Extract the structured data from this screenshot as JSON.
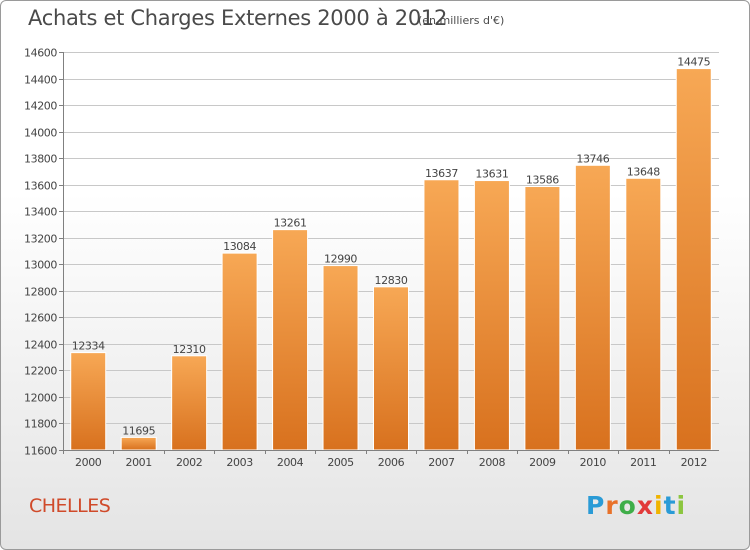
{
  "header": {
    "title": "Achats et Charges Externes 2000 à 2012",
    "subtitle": "(en milliers d'€)"
  },
  "footer": {
    "commune": "CHELLES",
    "logo_letters": [
      "P",
      "r",
      "o",
      "x",
      "i",
      "t",
      "i"
    ],
    "logo_colors": [
      "#2a9bd6",
      "#e8722a",
      "#3fae49",
      "#e23a3a",
      "#f0b400",
      "#2a9bd6",
      "#8cc63f"
    ]
  },
  "chart_data": {
    "type": "bar",
    "title": "Achats et Charges Externes 2000 à 2012",
    "categories": [
      "2000",
      "2001",
      "2002",
      "2003",
      "2004",
      "2005",
      "2006",
      "2007",
      "2008",
      "2009",
      "2010",
      "2011",
      "2012"
    ],
    "values": [
      12334,
      11695,
      12310,
      13084,
      13261,
      12990,
      12830,
      13637,
      13631,
      13586,
      13746,
      13648,
      14475
    ],
    "ylim": [
      11600,
      14600
    ],
    "yticks": [
      11600,
      11800,
      12000,
      12200,
      12400,
      12600,
      12800,
      13000,
      13200,
      13400,
      13600,
      13800,
      14000,
      14200,
      14400,
      14600
    ],
    "grid": true,
    "bar_color_top": "#f7a855",
    "bar_color_bottom": "#d8711e"
  }
}
